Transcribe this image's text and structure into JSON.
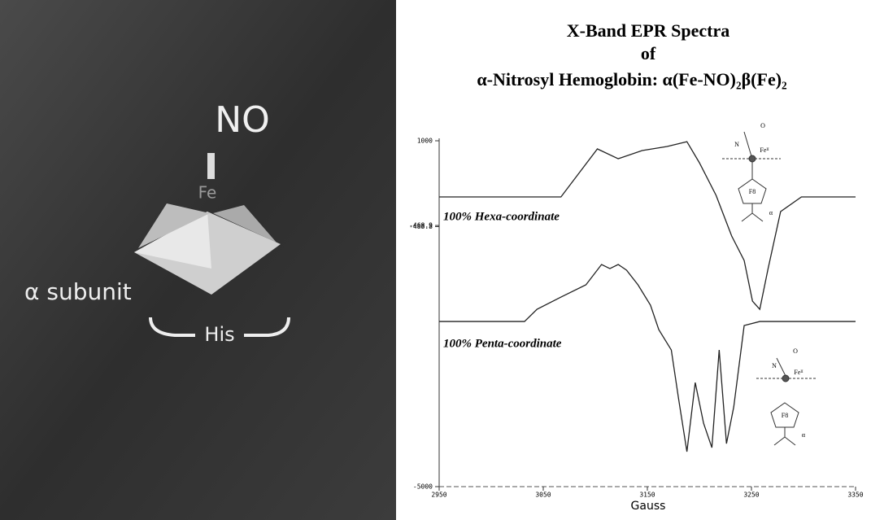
{
  "illustration": {
    "labels": [
      "NO",
      "Fe",
      "α subunit",
      "His"
    ]
  },
  "chart_data": {
    "type": "line",
    "title": [
      "X-Band EPR Spectra",
      "of",
      "α-Nitrosyl Hemoglobin: α(Fe-NO)₂β(Fe)₂"
    ],
    "x_label": "Gauss",
    "xlim": [
      2950,
      3350
    ],
    "xticks": [
      2950,
      3050,
      3150,
      3250,
      3350
    ],
    "ylim": [
      -5000,
      1000
    ],
    "yticks": [
      1000,
      -468.9,
      -488.8,
      -5000
    ],
    "annotations": [
      "100% Hexa-coordinate",
      "100% Penta-coordinate"
    ],
    "insets": [
      {
        "labels": [
          "O",
          "N",
          "Feᴵᴵ",
          "F8",
          "α"
        ]
      },
      {
        "labels": [
          "O",
          "N",
          "Feᴵᴵ",
          "F8",
          "α"
        ]
      }
    ],
    "series": [
      {
        "color": "#222222",
        "x": [
          2950,
          3067,
          3083,
          3102,
          3122,
          3145,
          3169,
          3188,
          3200,
          3216,
          3231,
          3243,
          3251,
          3258,
          3266,
          3278,
          3298,
          3350
        ],
        "values": [
          26,
          26,
          407,
          859,
          689,
          831,
          901,
          985,
          619,
          54,
          -652,
          -1076,
          -1782,
          -1923,
          -1217,
          -228,
          26,
          26
        ]
      },
      {
        "color": "#222222",
        "x": [
          2950,
          3032,
          3044,
          3067,
          3091,
          3106,
          3114,
          3122,
          3130,
          3141,
          3153,
          3161,
          3173,
          3180,
          3188,
          3196,
          3204,
          3212,
          3219,
          3226,
          3233,
          3243,
          3258,
          3350
        ],
        "values": [
          -2135,
          -2135,
          -1923,
          -1711,
          -1499,
          -1146,
          -1217,
          -1146,
          -1245,
          -1499,
          -1852,
          -2276,
          -2629,
          -3476,
          -4394,
          -3194,
          -3900,
          -4323,
          -2629,
          -4253,
          -3617,
          -2205,
          -2135,
          -2135
        ]
      }
    ]
  }
}
